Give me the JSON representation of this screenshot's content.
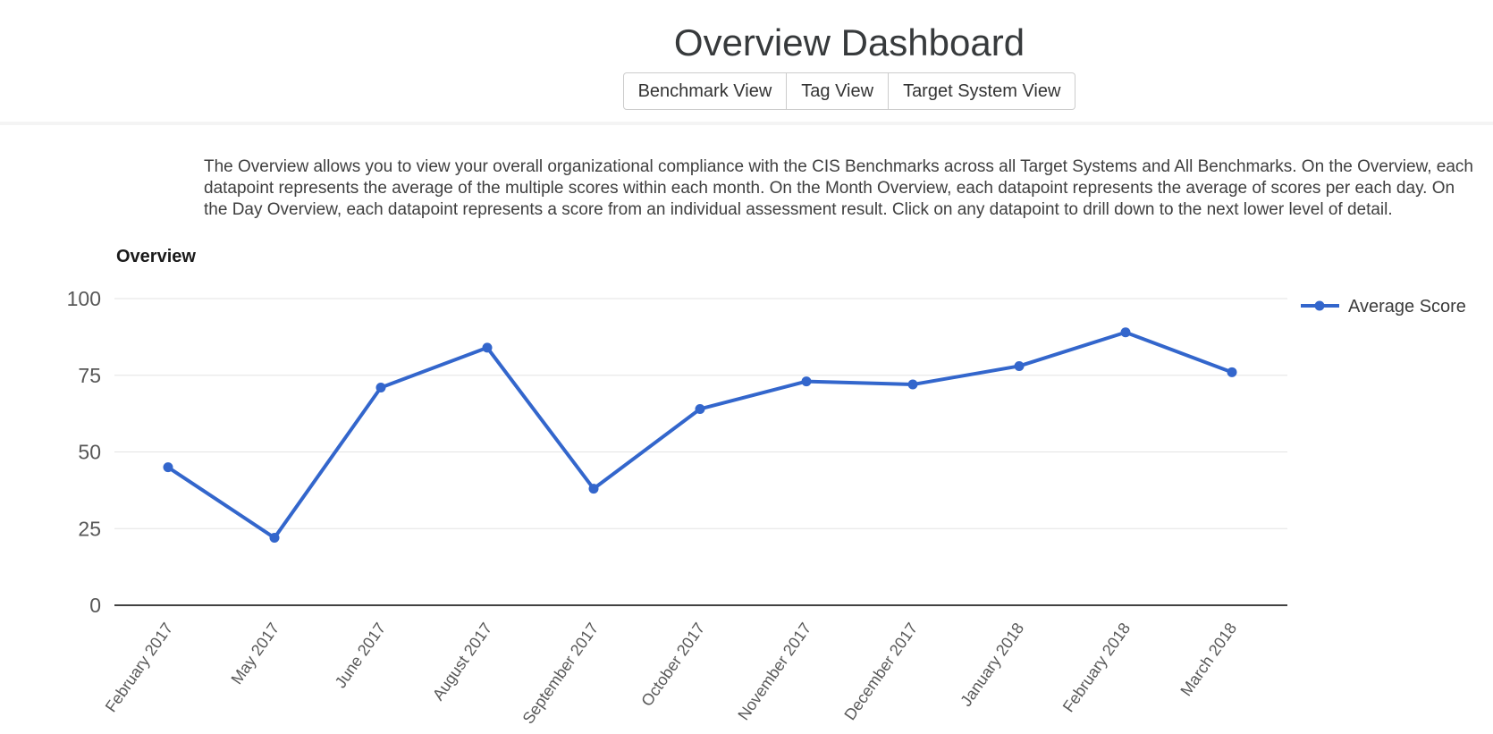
{
  "header": {
    "title": "Overview Dashboard",
    "views": [
      {
        "label": "Benchmark View"
      },
      {
        "label": "Tag View"
      },
      {
        "label": "Target System View"
      }
    ]
  },
  "description": "The Overview allows you to view your overall organizational compliance with the CIS Benchmarks across all Target Systems and All Benchmarks. On the Overview, each datapoint represents the average of the multiple scores within each month. On the Month Overview, each datapoint represents the average of scores per each day. On the Day Overview, each datapoint represents a score from an individual assessment result. Click on any datapoint to drill down to the next lower level of detail.",
  "chart_data": {
    "type": "line",
    "title": "Overview",
    "categories": [
      "February 2017",
      "May 2017",
      "June 2017",
      "August 2017",
      "September 2017",
      "October 2017",
      "November 2017",
      "December 2017",
      "January 2018",
      "February 2018",
      "March 2018"
    ],
    "series": [
      {
        "name": "Average Score",
        "values": [
          45,
          22,
          71,
          84,
          38,
          64,
          73,
          72,
          78,
          89,
          76
        ]
      }
    ],
    "ylim": [
      0,
      100
    ],
    "yticks": [
      0,
      25,
      50,
      75,
      100
    ],
    "grid": true,
    "legend_position": "right",
    "colors": {
      "line": "#3366cc",
      "gridline": "#e3e3e3",
      "axis_line": "#424242",
      "tick_label": "#575757",
      "category_label": "#595959",
      "legend_text": "#3b3b3b",
      "chart_title": "#1a1a1a"
    }
  }
}
